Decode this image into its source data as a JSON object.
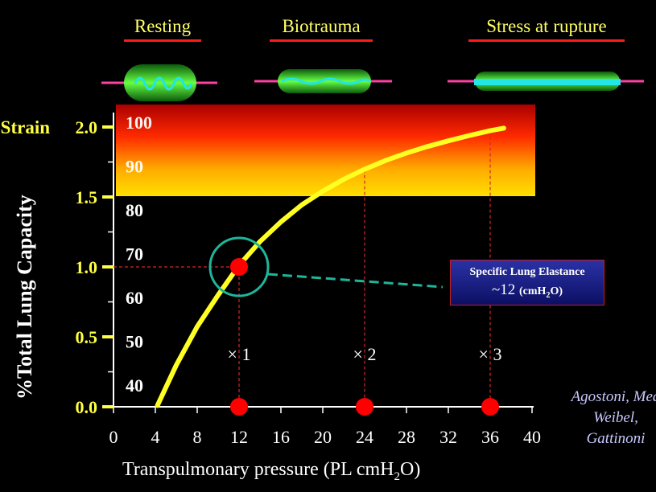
{
  "headers": [
    "Resting",
    "Biotrauma",
    "Stress at rupture"
  ],
  "elastance_box": {
    "title": "Specific Lung Elastance",
    "value": "~12",
    "unit": "(cmH",
    "unit_sub": "2",
    "unit_end": "O)"
  },
  "authors": [
    "Agostoni, Mea",
    "Weibel,",
    "Gattinoni"
  ],
  "colors": {
    "curve": "#ffff22",
    "marker": "#ff0000",
    "circle": "#1fb59a",
    "strain_axis": "#ffff44",
    "stress_band_top": "#aa0000",
    "stress_band_bottom": "#ffe000"
  },
  "chart_data": {
    "type": "line",
    "xlabel_main": "Transpulmonary pressure (PL cmH",
    "xlabel_sub": "2",
    "xlabel_end": "O)",
    "ylabel": "%Total Lung Capacity",
    "strain_axis_title": "Strain",
    "x_ticks": [
      "0",
      "4",
      "8",
      "12",
      "16",
      "20",
      "24",
      "28",
      "32",
      "36",
      "40"
    ],
    "tlc_ticks": [
      "40",
      "50",
      "60",
      "70",
      "80",
      "90",
      "100"
    ],
    "strain_ticks": [
      "0.0",
      "0.5",
      "1.0",
      "1.5",
      "2.0"
    ],
    "xlim": [
      0,
      40
    ],
    "tlc_lim": [
      35,
      100
    ],
    "strain_lim": [
      0,
      2
    ],
    "curve": {
      "x": [
        4.2,
        6,
        8,
        10,
        12,
        14,
        16,
        18,
        20,
        22,
        24,
        26,
        28,
        30,
        32,
        34,
        36,
        37.3
      ],
      "y": [
        35.3,
        44.5,
        53.3,
        60.5,
        67.3,
        72.7,
        77.2,
        81.1,
        84.2,
        86.9,
        89.2,
        91.2,
        92.9,
        94.4,
        95.7,
        96.9,
        98.0,
        98.6
      ]
    },
    "strain_points": [
      {
        "x": 12,
        "label": "× 1"
      },
      {
        "x": 24,
        "label": "× 2"
      },
      {
        "x": 36,
        "label": "× 3"
      }
    ],
    "reference_point": {
      "x": 12,
      "strain": 1.0
    },
    "stress_band_strain": [
      1.5,
      2.0
    ]
  }
}
